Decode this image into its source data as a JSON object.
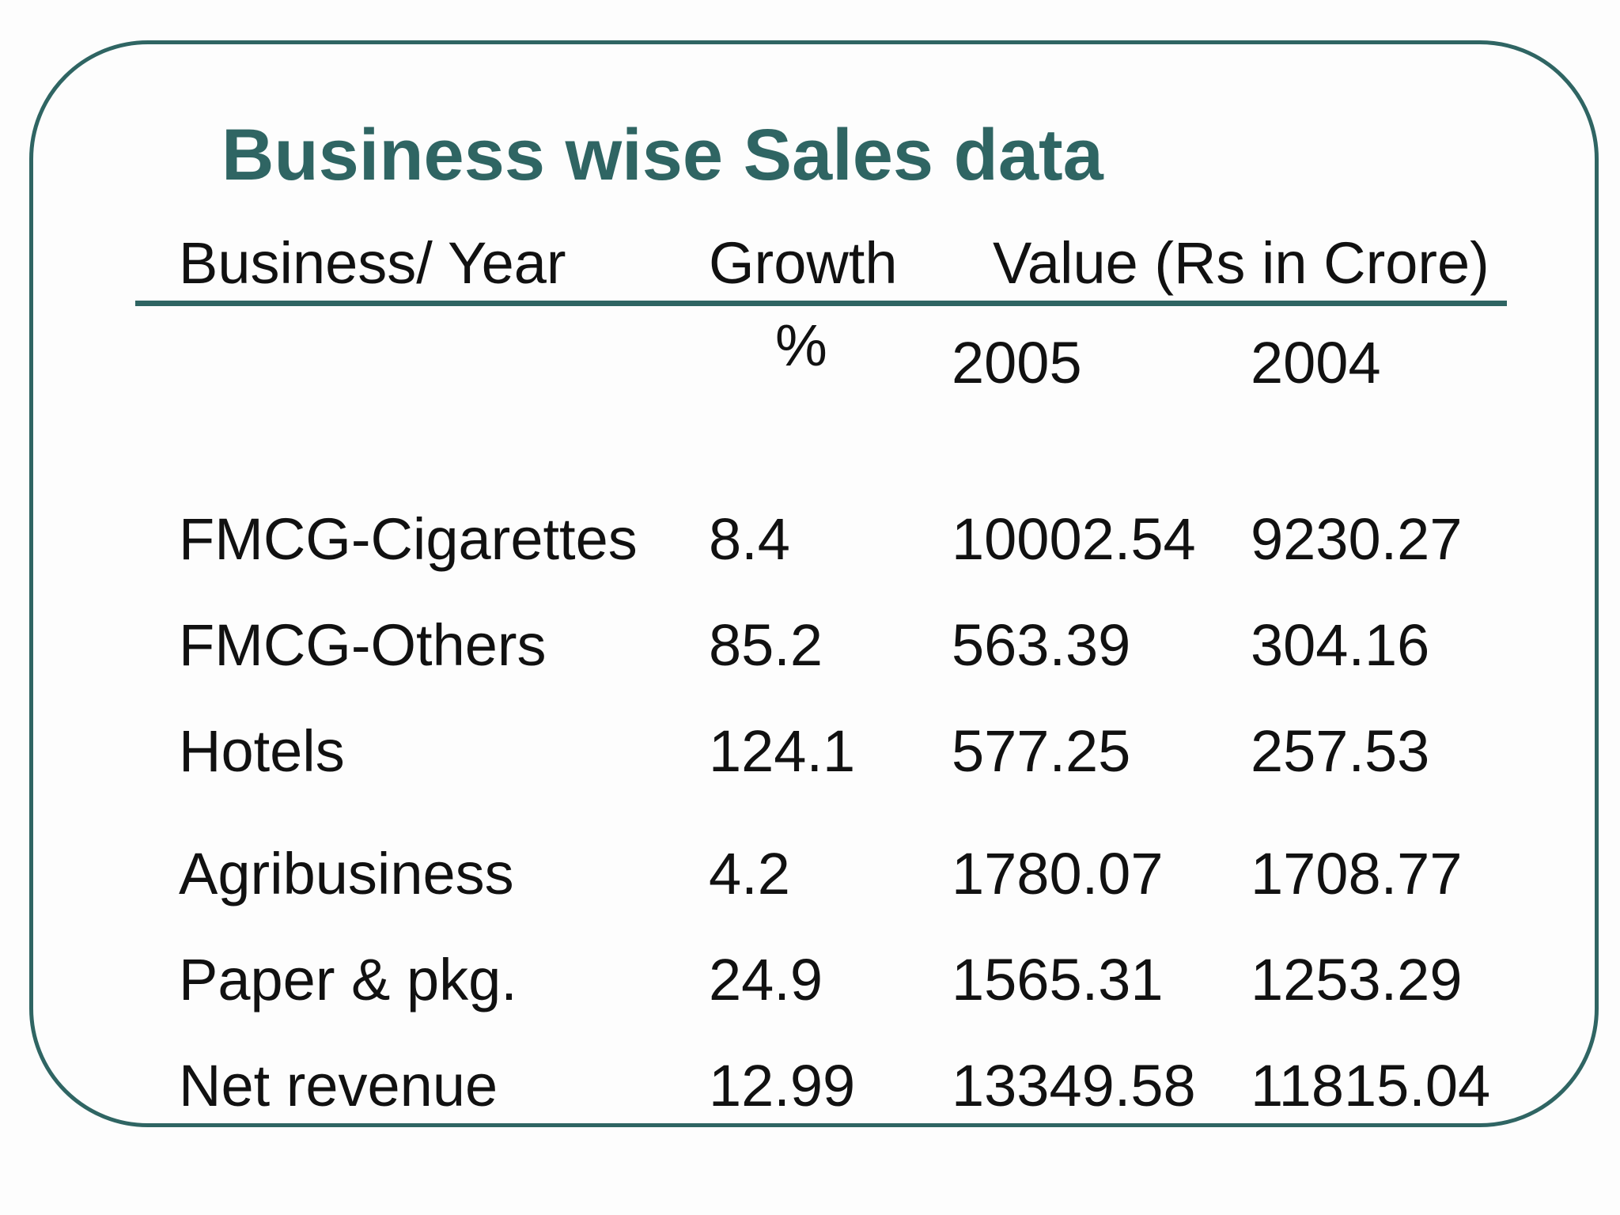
{
  "title": "Business wise Sales data",
  "header": {
    "business_year": "Business/ Year",
    "growth": "Growth",
    "growth_unit": "%",
    "value": "Value (Rs in Crore)",
    "year_2005": "2005",
    "year_2004": "2004"
  },
  "rows": [
    {
      "business": "FMCG-Cigarettes",
      "growth": "8.4",
      "v2005": "10002.54",
      "v2004": "9230.27"
    },
    {
      "business": "FMCG-Others",
      "growth": "85.2",
      "v2005": "563.39",
      "v2004": "304.16"
    },
    {
      "business": "Hotels",
      "growth": "124.1",
      "v2005": "577.25",
      "v2004": "257.53"
    },
    {
      "business": "Agribusiness",
      "growth": "4.2",
      "v2005": "1780.07",
      "v2004": "1708.77"
    },
    {
      "business": "Paper & pkg.",
      "growth": "24.9",
      "v2005": "1565.31",
      "v2004": "1253.29"
    },
    {
      "business": "Net revenue",
      "growth": "12.99",
      "v2005": "13349.58",
      "v2004": "11815.04"
    }
  ]
}
